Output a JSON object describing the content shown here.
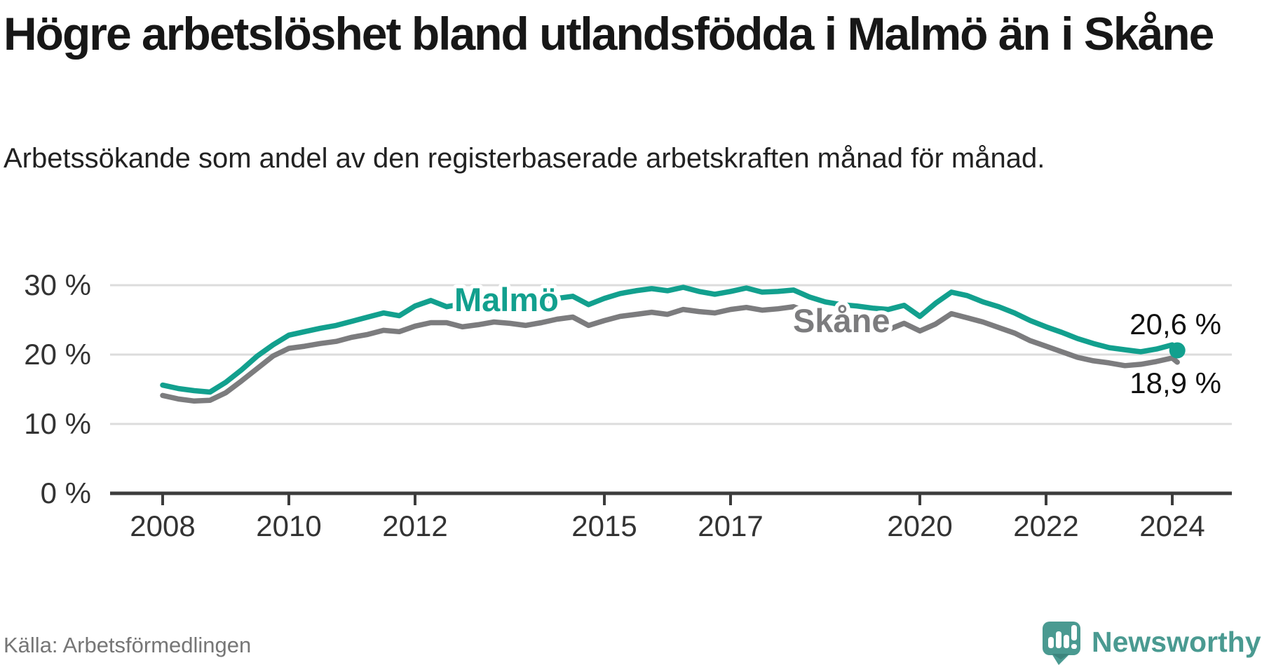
{
  "header": {
    "title": "Högre arbetslöshet bland utlandsfödda i Malmö än i Skåne",
    "subtitle": "Arbetssökande som andel av den registerbaserade arbetskraften månad för månad."
  },
  "footer": {
    "source": "Källa: Arbetsförmedlingen",
    "logo_text": "Newsworthy",
    "logo_icon": "newsworthy-speech-bubble-bar-chart-icon"
  },
  "colors": {
    "malmo_line": "#12a08e",
    "skane_line": "#7c7c7e",
    "grid": "#dcdcdc",
    "axis": "#3c3c3c",
    "axis_text": "#333333",
    "value_label_text": "#111111",
    "logo_teal": "#4a9a91",
    "background": "#ffffff"
  },
  "chart_data": {
    "type": "line",
    "title": "",
    "xlabel": "",
    "ylabel": "",
    "x_unit": "decimal_year",
    "grid": "horizontal",
    "legend": "inline-labels",
    "xlim": [
      2007.2,
      2024.95
    ],
    "ylim": [
      0,
      35.5
    ],
    "y_ticks": [
      {
        "value": 0,
        "label": "0 %"
      },
      {
        "value": 10,
        "label": "10 %"
      },
      {
        "value": 20,
        "label": "20 %"
      },
      {
        "value": 30,
        "label": "30 %"
      }
    ],
    "x_ticks": [
      {
        "value": 2008,
        "label": "2008"
      },
      {
        "value": 2010,
        "label": "2010"
      },
      {
        "value": 2012,
        "label": "2012"
      },
      {
        "value": 2015,
        "label": "2015"
      },
      {
        "value": 2017,
        "label": "2017"
      },
      {
        "value": 2020,
        "label": "2020"
      },
      {
        "value": 2022,
        "label": "2022"
      },
      {
        "value": 2024,
        "label": "2024"
      }
    ],
    "x": [
      2008.0,
      2008.25,
      2008.5,
      2008.75,
      2009.0,
      2009.25,
      2009.5,
      2009.75,
      2010.0,
      2010.25,
      2010.5,
      2010.75,
      2011.0,
      2011.25,
      2011.5,
      2011.75,
      2012.0,
      2012.25,
      2012.5,
      2012.75,
      2013.0,
      2013.25,
      2013.5,
      2013.75,
      2014.0,
      2014.25,
      2014.5,
      2014.75,
      2015.0,
      2015.25,
      2015.5,
      2015.75,
      2016.0,
      2016.25,
      2016.5,
      2016.75,
      2017.0,
      2017.25,
      2017.5,
      2017.75,
      2018.0,
      2018.25,
      2018.5,
      2018.75,
      2019.0,
      2019.25,
      2019.5,
      2019.75,
      2020.0,
      2020.25,
      2020.5,
      2020.75,
      2021.0,
      2021.25,
      2021.5,
      2021.75,
      2022.0,
      2022.25,
      2022.5,
      2022.75,
      2023.0,
      2023.25,
      2023.5,
      2023.75,
      2024.0,
      2024.08
    ],
    "series": [
      {
        "name": "Malmö",
        "color": "#12a08e",
        "end_label": "20,6 %",
        "end_value": 20.6,
        "end_dot": true,
        "values": [
          15.6,
          15.1,
          14.8,
          14.6,
          16.0,
          17.8,
          19.8,
          21.4,
          22.8,
          23.3,
          23.8,
          24.2,
          24.8,
          25.4,
          26.0,
          25.6,
          27.0,
          27.8,
          26.9,
          27.3,
          27.4,
          27.7,
          27.5,
          27.2,
          27.6,
          28.1,
          28.4,
          27.2,
          28.1,
          28.8,
          29.2,
          29.5,
          29.2,
          29.7,
          29.1,
          28.7,
          29.1,
          29.6,
          29.0,
          29.1,
          29.3,
          28.3,
          27.6,
          27.2,
          27.0,
          26.7,
          26.5,
          27.1,
          25.5,
          27.4,
          29.0,
          28.5,
          27.6,
          26.9,
          26.0,
          24.9,
          24.0,
          23.2,
          22.3,
          21.6,
          21.0,
          20.7,
          20.4,
          20.8,
          21.4,
          20.6
        ]
      },
      {
        "name": "Skåne",
        "color": "#7c7c7e",
        "end_label": "18,9 %",
        "end_value": 18.9,
        "end_dot": false,
        "values": [
          14.1,
          13.6,
          13.3,
          13.4,
          14.5,
          16.2,
          18.0,
          19.8,
          20.9,
          21.2,
          21.6,
          21.9,
          22.5,
          22.9,
          23.5,
          23.3,
          24.1,
          24.6,
          24.6,
          24.0,
          24.3,
          24.7,
          24.5,
          24.2,
          24.6,
          25.1,
          25.4,
          24.2,
          24.9,
          25.5,
          25.8,
          26.1,
          25.8,
          26.5,
          26.2,
          26.0,
          26.5,
          26.8,
          26.4,
          26.6,
          26.9,
          26.0,
          25.5,
          24.9,
          24.4,
          23.9,
          23.6,
          24.5,
          23.4,
          24.4,
          25.9,
          25.3,
          24.7,
          23.9,
          23.1,
          22.0,
          21.2,
          20.4,
          19.6,
          19.1,
          18.8,
          18.4,
          18.6,
          19.0,
          19.5,
          18.9
        ]
      }
    ]
  }
}
